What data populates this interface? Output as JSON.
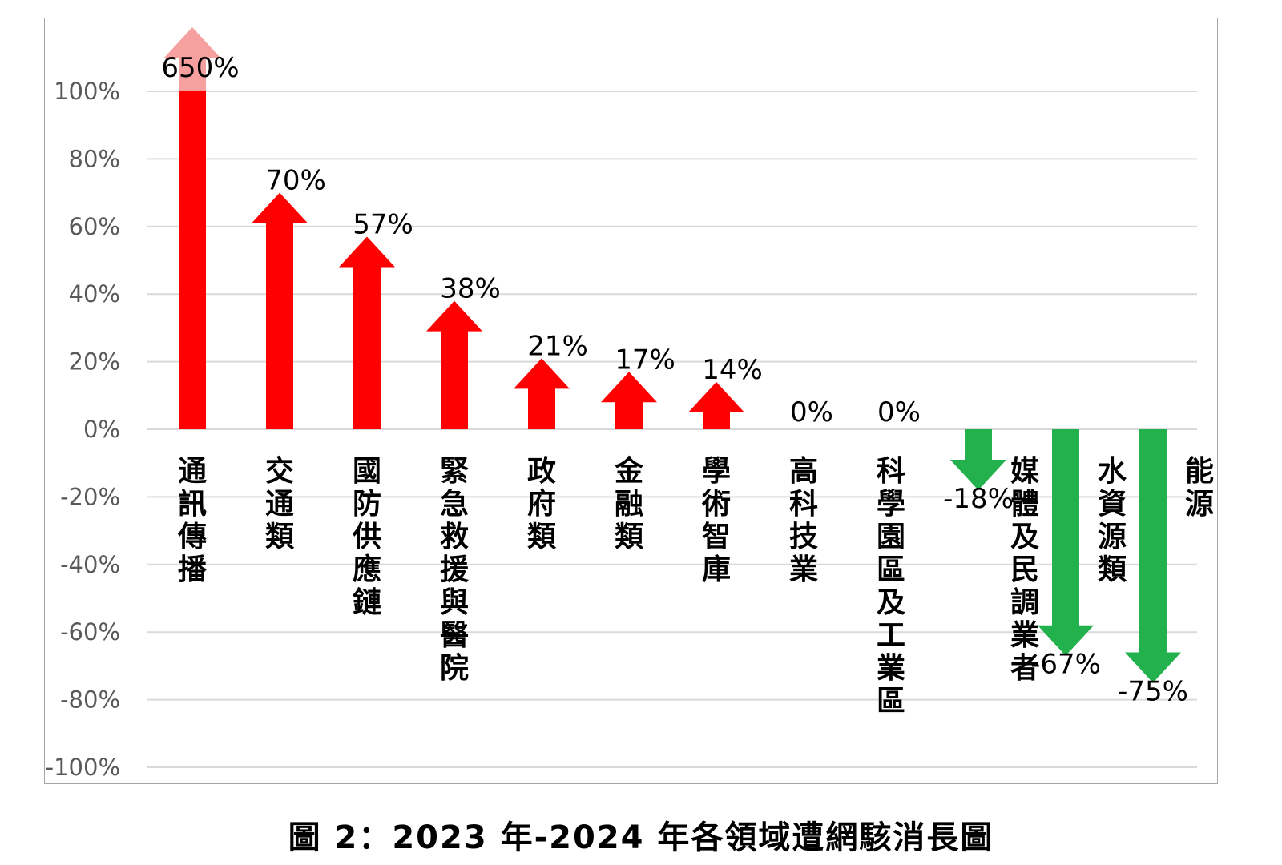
{
  "chart_data": {
    "type": "bar",
    "categories": [
      "通訊傳播",
      "交通類",
      "國防供應鏈",
      "緊急救援與醫院",
      "政府類",
      "金融類",
      "學術智庫",
      "高科技業",
      "科學園區及工業區",
      "媒體及民調業者",
      "水資源類",
      "能源"
    ],
    "values": [
      650,
      70,
      57,
      38,
      21,
      17,
      14,
      0,
      0,
      -18,
      -67,
      -75
    ],
    "value_labels": [
      "650%",
      "70%",
      "57%",
      "38%",
      "21%",
      "17%",
      "14%",
      "0%",
      "0%",
      "-18%",
      "-67%",
      "-75%"
    ],
    "ylim": [
      -100,
      100
    ],
    "y_ticks": [
      "100%",
      "80%",
      "60%",
      "40%",
      "20%",
      "0%",
      "-20%",
      "-40%",
      "-60%",
      "-80%",
      "-100%"
    ],
    "grid": true,
    "colors": {
      "positive": "#ff0000",
      "negative": "#22b14c",
      "overflow": "#f7a0a0",
      "grid": "#d9d9d9",
      "axis_text": "#595959"
    },
    "title": ""
  },
  "caption": "圖 2：2023 年-2024 年各領域遭網駭消長圖"
}
